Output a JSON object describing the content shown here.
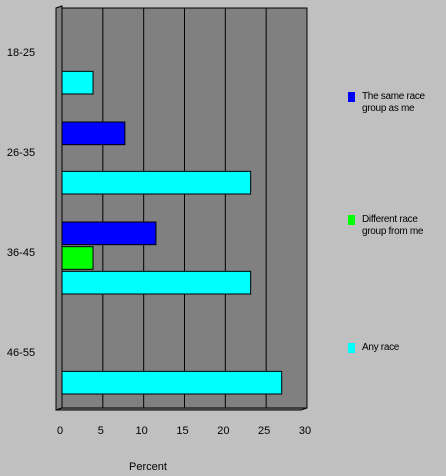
{
  "chart_data": {
    "type": "bar",
    "orientation": "horizontal",
    "categories": [
      "18-25",
      "26-35",
      "36-45",
      "46-55"
    ],
    "series": [
      {
        "name": "The same race group as me",
        "color": "#0000ff",
        "values": [
          0,
          7.7,
          11.5,
          0
        ]
      },
      {
        "name": "Different race group from me",
        "color": "#00ff00",
        "values": [
          0,
          0,
          3.8,
          0
        ]
      },
      {
        "name": "Any race",
        "color": "#00ffff",
        "values": [
          3.8,
          23.1,
          23.1,
          26.9
        ]
      }
    ],
    "xlabel": "Percent",
    "ylabel": "",
    "xlim": [
      0,
      30
    ],
    "xticks": [
      "0",
      "5",
      "10",
      "15",
      "20",
      "25",
      "30"
    ],
    "grid": true,
    "legend_position": "right"
  },
  "legend": {
    "items": [
      {
        "label": "The same race\ngroup as me",
        "color": "#0000ff"
      },
      {
        "label": "Different race\ngroup from me",
        "color": "#00ff00"
      },
      {
        "label": "Any race",
        "color": "#00ffff"
      }
    ]
  }
}
